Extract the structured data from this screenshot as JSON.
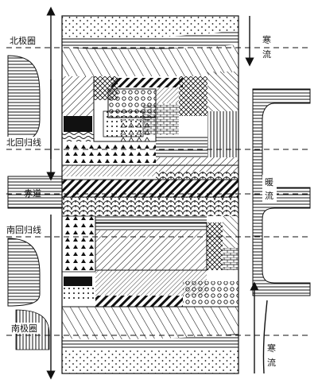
{
  "labels": {
    "north_polar_circle": "北极圈",
    "tropic_of_cancer": "北回归线",
    "equator": "赤道",
    "tropic_of_capricorn": "南回归线",
    "south_polar_circle": "南极圈",
    "cold_current_top_1": "寒",
    "cold_current_top_2": "流",
    "warm_current_1": "暖",
    "warm_current_2": "流",
    "cold_current_bottom_1": "寒",
    "cold_current_bottom_2": "流"
  },
  "colors": {
    "ink": "#111111",
    "paper": "#ffffff"
  }
}
